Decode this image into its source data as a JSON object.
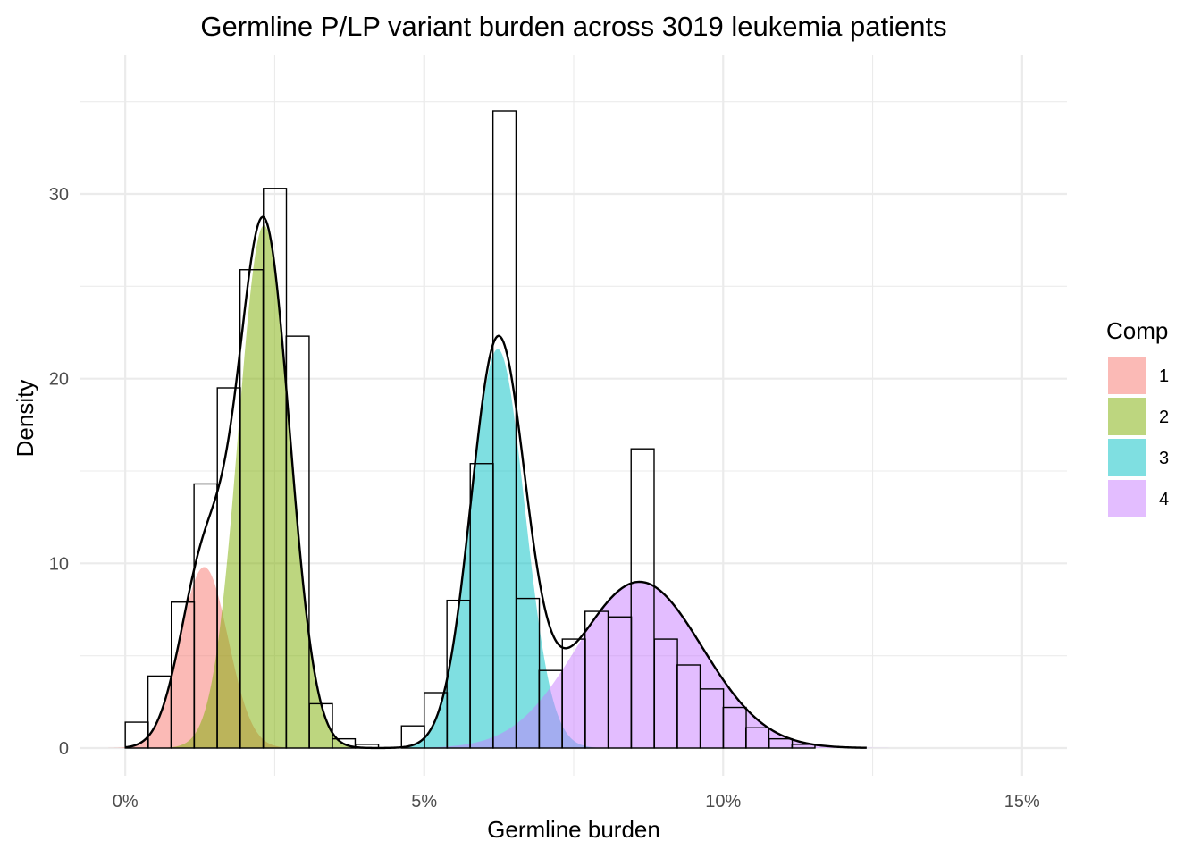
{
  "chart_data": {
    "type": "histogram with mixture density",
    "title": "Germline P/LP variant burden across 3019 leukemia patients",
    "xlabel": "Germline burden",
    "ylabel": "Density",
    "xlim": [
      -0.0075,
      0.1575
    ],
    "ylim": [
      -1.5,
      37.5
    ],
    "x_ticks": [
      0,
      0.05,
      0.1,
      0.15
    ],
    "x_tick_labels": [
      "0%",
      "5%",
      "10%",
      "15%"
    ],
    "y_ticks": [
      0,
      10,
      20,
      30
    ],
    "y_tick_labels": [
      "0",
      "10",
      "20",
      "30"
    ],
    "grid": true,
    "legend": {
      "title": "Comp",
      "position": "right",
      "entries": [
        {
          "label": "1",
          "color": "#F8766D"
        },
        {
          "label": "2",
          "color": "#7CAE00"
        },
        {
          "label": "3",
          "color": "#00BFC4"
        },
        {
          "label": "4",
          "color": "#C77CFF"
        }
      ]
    },
    "histogram": {
      "bin_width": 0.00385,
      "bins": [
        {
          "x0": 0.0,
          "density": 1.4
        },
        {
          "x0": 0.0038,
          "density": 3.9
        },
        {
          "x0": 0.0077,
          "density": 7.9
        },
        {
          "x0": 0.0115,
          "density": 14.3
        },
        {
          "x0": 0.0154,
          "density": 19.5
        },
        {
          "x0": 0.0192,
          "density": 25.9
        },
        {
          "x0": 0.0231,
          "density": 30.3
        },
        {
          "x0": 0.0269,
          "density": 22.3
        },
        {
          "x0": 0.0308,
          "density": 2.4
        },
        {
          "x0": 0.0346,
          "density": 0.5
        },
        {
          "x0": 0.0385,
          "density": 0.2
        },
        {
          "x0": 0.0462,
          "density": 1.2
        },
        {
          "x0": 0.05,
          "density": 3.0
        },
        {
          "x0": 0.0538,
          "density": 8.0
        },
        {
          "x0": 0.0577,
          "density": 15.4
        },
        {
          "x0": 0.0615,
          "density": 34.5
        },
        {
          "x0": 0.0654,
          "density": 8.1
        },
        {
          "x0": 0.0692,
          "density": 4.2
        },
        {
          "x0": 0.0731,
          "density": 5.9
        },
        {
          "x0": 0.0769,
          "density": 7.4
        },
        {
          "x0": 0.0808,
          "density": 7.1
        },
        {
          "x0": 0.0846,
          "density": 16.2
        },
        {
          "x0": 0.0885,
          "density": 5.9
        },
        {
          "x0": 0.0923,
          "density": 4.5
        },
        {
          "x0": 0.0962,
          "density": 3.2
        },
        {
          "x0": 0.1,
          "density": 2.2
        },
        {
          "x0": 0.1038,
          "density": 1.1
        },
        {
          "x0": 0.1077,
          "density": 0.5
        },
        {
          "x0": 0.1115,
          "density": 0.2
        }
      ]
    },
    "components": [
      {
        "name": "1",
        "mean": 0.0132,
        "sd": 0.004,
        "peak": 9.8,
        "color": "#F8766D"
      },
      {
        "name": "2",
        "mean": 0.0232,
        "sd": 0.0043,
        "peak": 28.3,
        "color": "#7CAE00"
      },
      {
        "name": "3",
        "mean": 0.0623,
        "sd": 0.0045,
        "peak": 21.6,
        "color": "#00BFC4"
      },
      {
        "name": "4",
        "mean": 0.086,
        "sd": 0.0105,
        "peak": 9.0,
        "color": "#C77CFF"
      }
    ],
    "total_density_curve_range": [
      0.0,
      0.124
    ]
  }
}
